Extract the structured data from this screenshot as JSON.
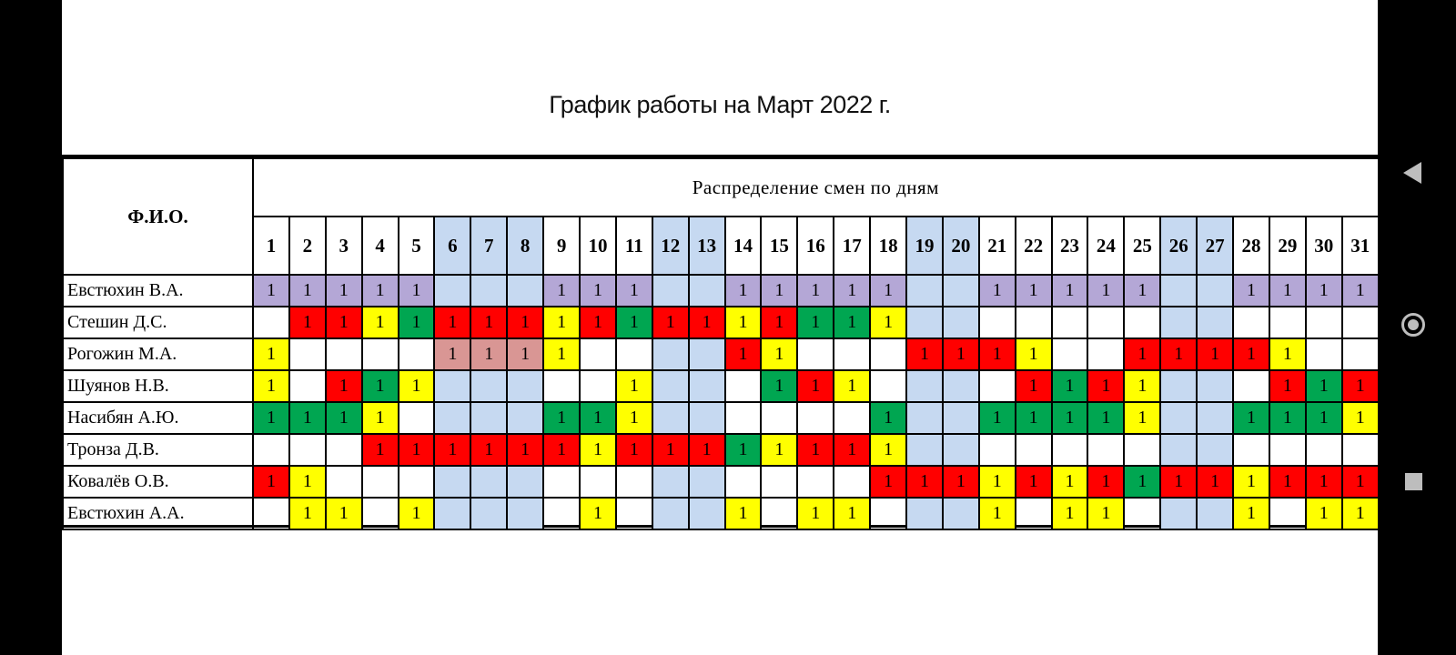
{
  "title": "График работы на Март 2022 г.",
  "table": {
    "name_header": "Ф.И.О.",
    "distribution_header": "Распределение смен по дням",
    "days": [
      "1",
      "2",
      "3",
      "4",
      "5",
      "6",
      "7",
      "8",
      "9",
      "10",
      "11",
      "12",
      "13",
      "14",
      "15",
      "16",
      "17",
      "18",
      "19",
      "20",
      "21",
      "22",
      "23",
      "24",
      "25",
      "26",
      "27",
      "28",
      "29",
      "30",
      "31"
    ],
    "weekend_days": [
      6,
      7,
      8,
      12,
      13,
      19,
      20,
      26,
      27
    ],
    "colors": {
      "p": "#b4a7d6",
      "r": "#ff0000",
      "y": "#ffff00",
      "g": "#00a651",
      "k": "#d99694",
      "weekend": "#c6d9f1"
    },
    "rows": [
      {
        "name": "Евстюхин В.А.",
        "cells": [
          "p",
          "p",
          "p",
          "p",
          "p",
          "",
          "",
          "",
          "p",
          "p",
          "p",
          "",
          "",
          "p",
          "p",
          "p",
          "p",
          "p",
          "",
          "",
          "p",
          "p",
          "p",
          "p",
          "p",
          "",
          "",
          "p",
          "p",
          "p",
          "p"
        ]
      },
      {
        "name": "Стешин Д.С.",
        "cells": [
          "",
          "r",
          "r",
          "y",
          "g",
          "r",
          "r",
          "r",
          "y",
          "r",
          "g",
          "r",
          "r",
          "y",
          "r",
          "g",
          "g",
          "y",
          "",
          "",
          "",
          "",
          "",
          "",
          "",
          "",
          "",
          "",
          "",
          "",
          ""
        ]
      },
      {
        "name": "Рогожин  М.А.",
        "cells": [
          "y",
          "",
          "",
          "",
          "",
          "k",
          "k",
          "k",
          "y",
          "",
          "",
          "",
          "",
          "r",
          "y",
          "",
          "",
          "",
          "r",
          "r",
          "r",
          "y",
          "",
          "",
          "r",
          "r",
          "r",
          "r",
          "y",
          "",
          ""
        ]
      },
      {
        "name": "Шуянов Н.В.",
        "cells": [
          "y",
          "",
          "r",
          "g",
          "y",
          "",
          "",
          "",
          "",
          "",
          "y",
          "",
          "",
          "",
          "g",
          "r",
          "y",
          "",
          "",
          "",
          "",
          "r",
          "g",
          "r",
          "y",
          "",
          "",
          "",
          "r",
          "g",
          "r"
        ]
      },
      {
        "name": "Насибян А.Ю.",
        "cells": [
          "g",
          "g",
          "g",
          "y",
          "",
          "",
          "",
          "",
          "g",
          "g",
          "y",
          "",
          "",
          "",
          "",
          "",
          "",
          "g",
          "",
          "",
          "g",
          "g",
          "g",
          "g",
          "y",
          "",
          "",
          "g",
          "g",
          "g",
          "y"
        ]
      },
      {
        "name": "Тронза Д.В.",
        "cells": [
          "",
          "",
          "",
          "r",
          "r",
          "r",
          "r",
          "r",
          "r",
          "y",
          "r",
          "r",
          "r",
          "g",
          "y",
          "r",
          "r",
          "y",
          "",
          "",
          "",
          "",
          "",
          "",
          "",
          "",
          "",
          "",
          "",
          "",
          ""
        ]
      },
      {
        "name": "Ковалёв О.В.",
        "cells": [
          "r",
          "y",
          "",
          "",
          "",
          "",
          "",
          "",
          "",
          "",
          "",
          "",
          "",
          "",
          "",
          "",
          "",
          "r",
          "r",
          "r",
          "y",
          "r",
          "y",
          "r",
          "g",
          "r",
          "r",
          "y",
          "r",
          "r",
          "r"
        ]
      },
      {
        "name": "Евстюхин А.А.",
        "cells": [
          "",
          "y",
          "y",
          "",
          "y",
          "",
          "",
          "",
          "",
          "y",
          "",
          "",
          "",
          "y",
          "",
          "y",
          "y",
          "",
          "",
          "",
          "y",
          "",
          "y",
          "y",
          "",
          "",
          "",
          "y",
          "",
          "y",
          "y"
        ]
      }
    ],
    "shift_value": "1"
  },
  "nav": {
    "back_icon": "back-triangle-icon",
    "home_icon": "home-circle-icon",
    "recents_icon": "recents-square-icon"
  }
}
